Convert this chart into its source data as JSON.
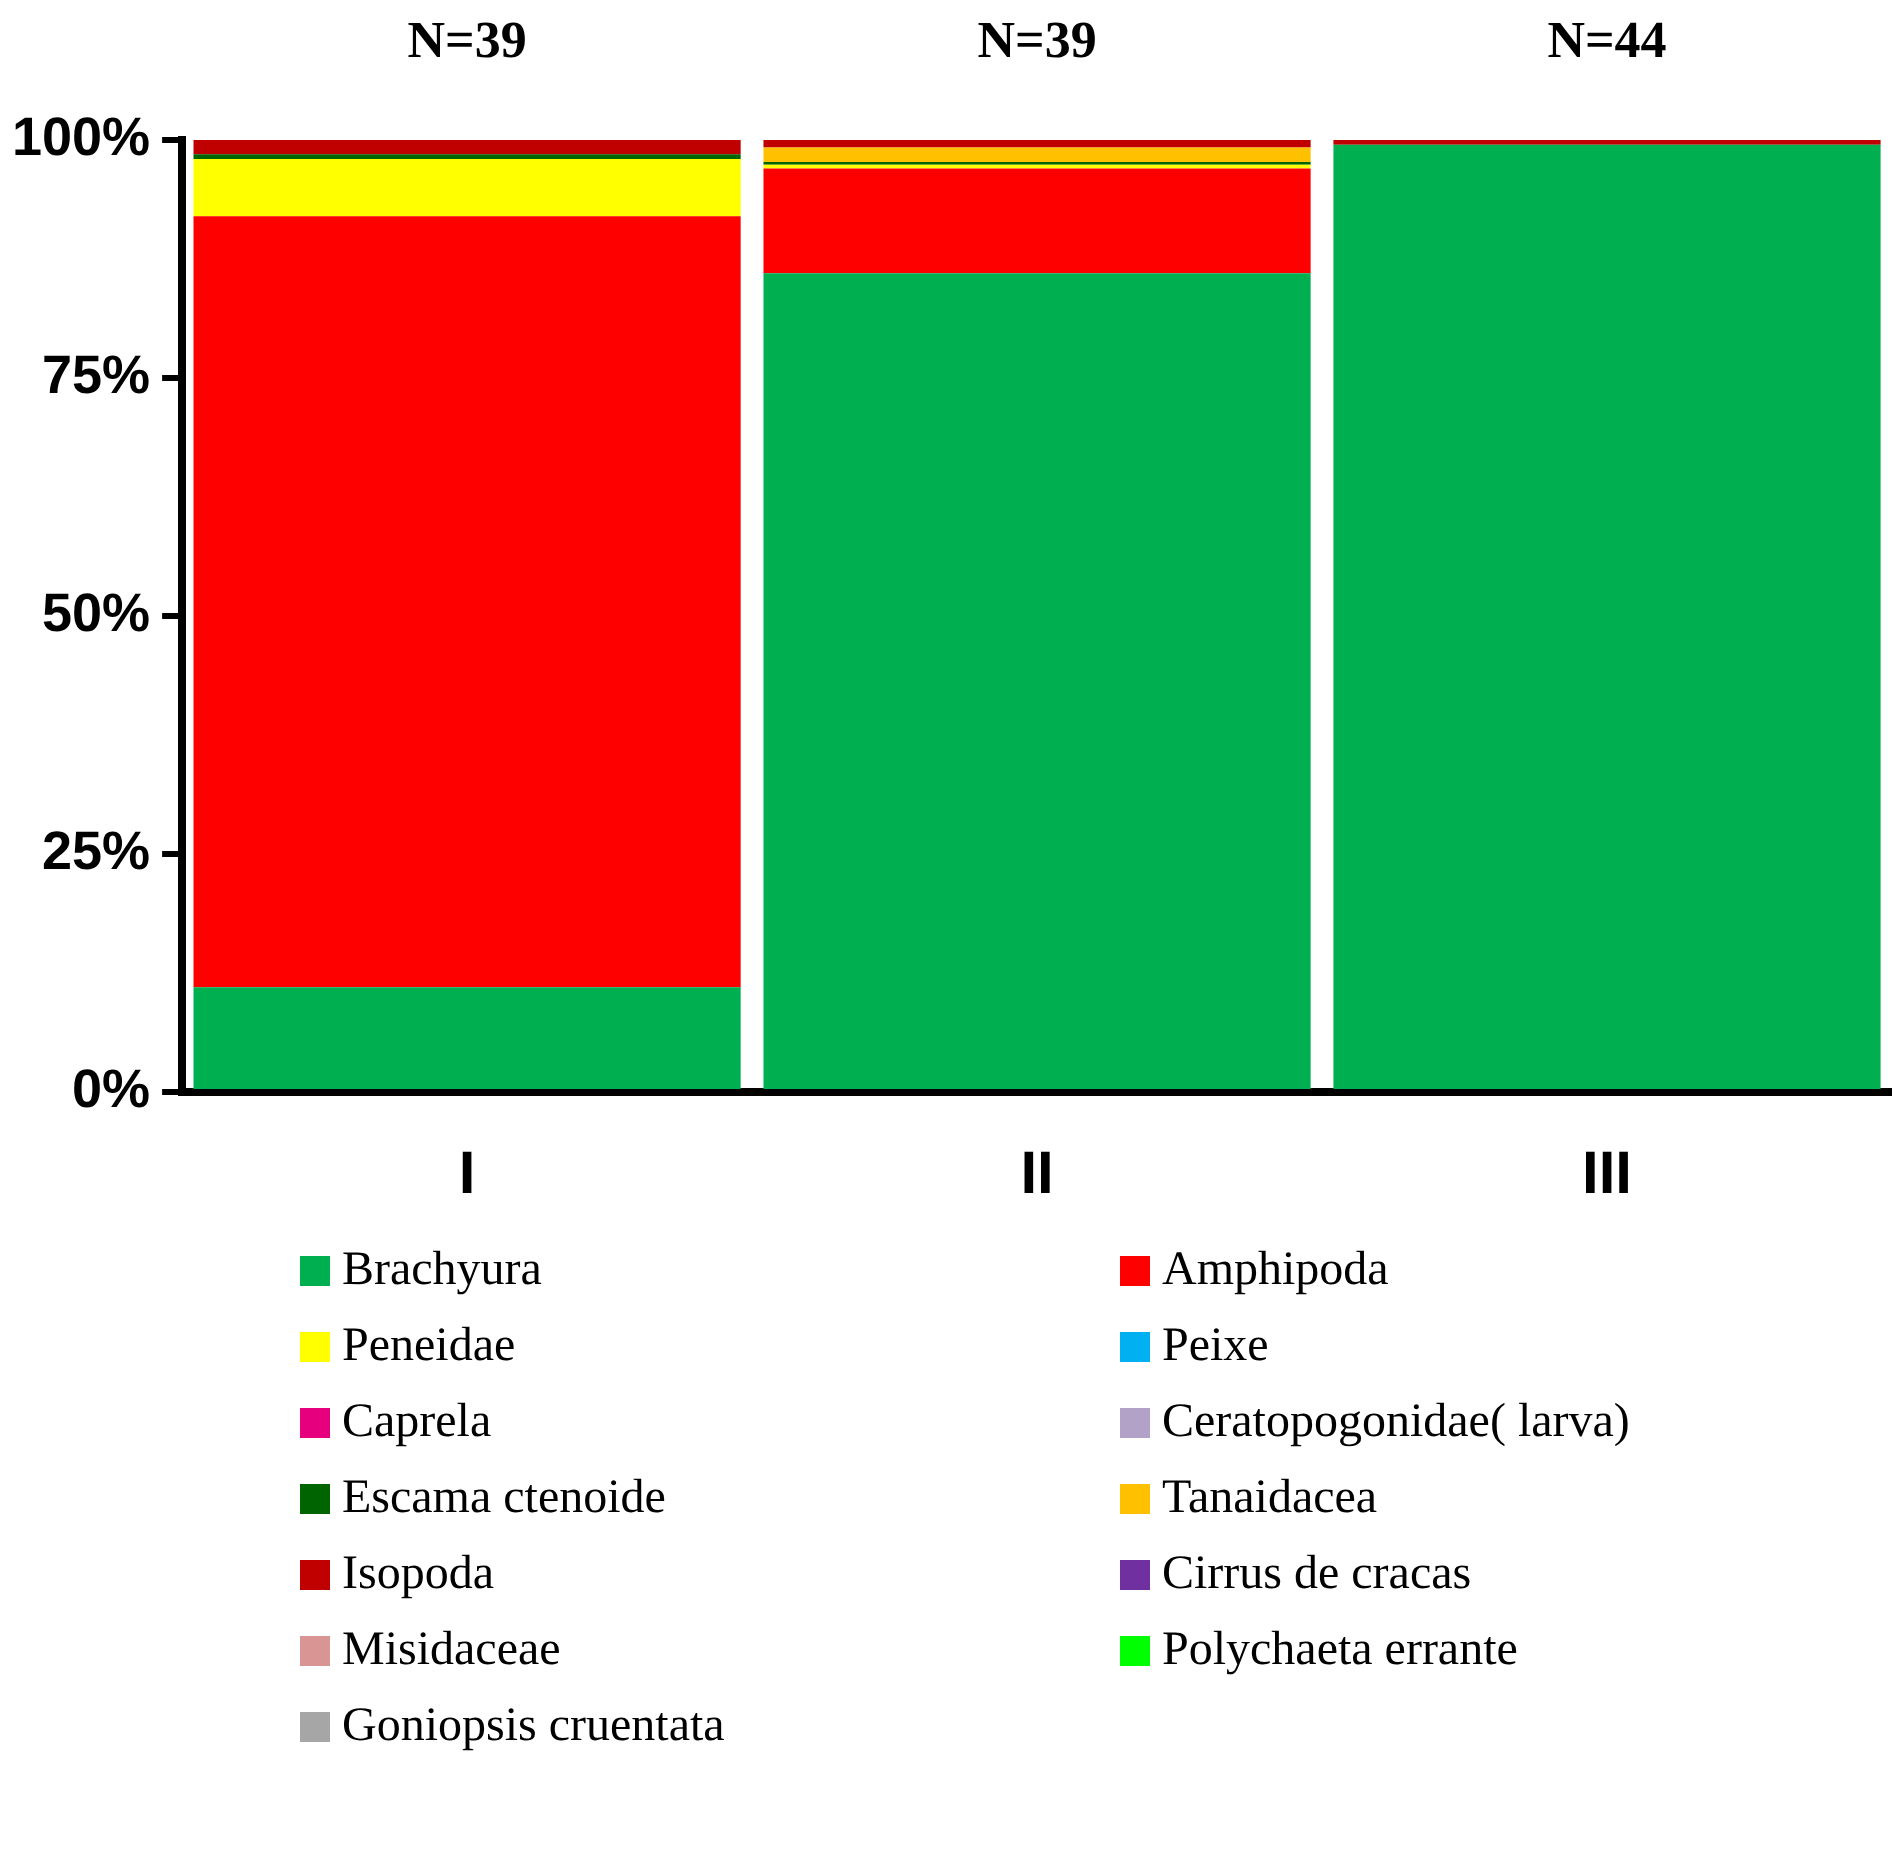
{
  "chart_data": {
    "type": "bar",
    "stacked": true,
    "categories": [
      "I",
      "II",
      "III"
    ],
    "ylim": [
      0,
      100
    ],
    "yticks": [
      {
        "value": 0,
        "label": "0%"
      },
      {
        "value": 25,
        "label": "25%"
      },
      {
        "value": 50,
        "label": "50%"
      },
      {
        "value": 75,
        "label": "75%"
      },
      {
        "value": 100,
        "label": "100%"
      }
    ],
    "grid": false,
    "legend": "bottom",
    "annotations": [
      "N=39",
      "N=39",
      "N=44"
    ],
    "series": [
      {
        "name": "Brachyura",
        "color": "#00b050",
        "values": [
          11,
          86,
          99.5
        ]
      },
      {
        "name": "Amphipoda",
        "color": "#ff0000",
        "values": [
          81,
          11,
          0
        ]
      },
      {
        "name": "Peneidae",
        "color": "#ffff00",
        "values": [
          6,
          0.4,
          0
        ]
      },
      {
        "name": "Peixe",
        "color": "#00b0f0",
        "values": [
          0,
          0,
          0
        ]
      },
      {
        "name": "Caprela",
        "color": "#e6007e",
        "values": [
          0,
          0,
          0
        ]
      },
      {
        "name": "Ceratopogonidae( larva)",
        "color": "#b3a2c7",
        "values": [
          0,
          0,
          0
        ]
      },
      {
        "name": "Escama ctenoide",
        "color": "#006400",
        "values": [
          0.5,
          0.3,
          0
        ]
      },
      {
        "name": "Tanaidacea",
        "color": "#ffc000",
        "values": [
          0,
          1.5,
          0
        ]
      },
      {
        "name": "Isopoda",
        "color": "#c00000",
        "values": [
          1.5,
          0.8,
          0.5
        ]
      },
      {
        "name": "Cirrus de cracas",
        "color": "#7030a0",
        "values": [
          0,
          0,
          0
        ]
      },
      {
        "name": "Misidaceae",
        "color": "#d99594",
        "values": [
          0,
          0,
          0
        ]
      },
      {
        "name": "Polychaeta errante",
        "color": "#00ff00",
        "values": [
          0,
          0,
          0
        ]
      },
      {
        "name": "Goniopsis cruentata",
        "color": "#a6a6a6",
        "values": [
          0,
          0,
          0
        ]
      }
    ]
  }
}
